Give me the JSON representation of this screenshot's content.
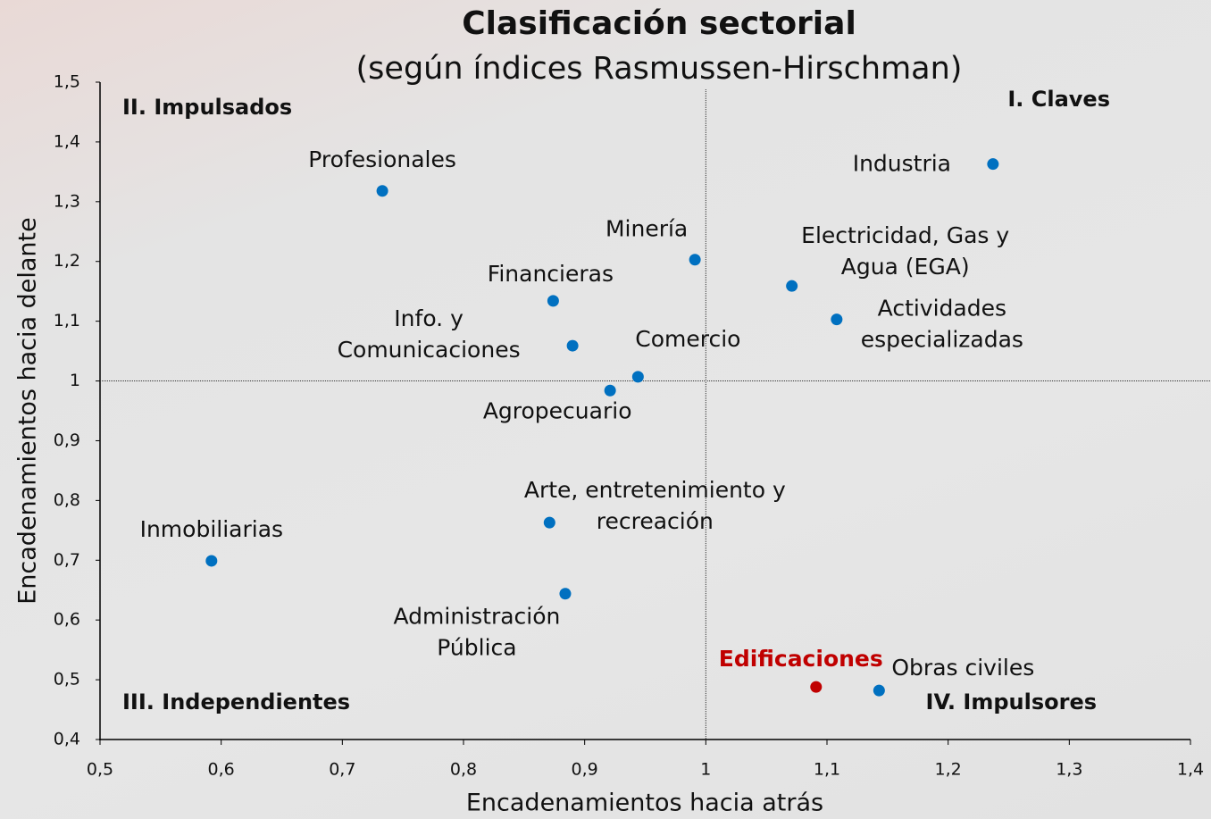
{
  "chart_data": {
    "type": "scatter",
    "title": "Clasificación sectorial",
    "subtitle": "(según índices Rasmussen-Hirschman)",
    "xlabel": "Encadenamientos hacia atrás",
    "ylabel": "Encadenamientos hacia delante",
    "xlim": [
      0.5,
      1.4
    ],
    "ylim": [
      0.4,
      1.5
    ],
    "xticks": [
      {
        "value": 0.5,
        "label": "0,5"
      },
      {
        "value": 0.6,
        "label": "0,6"
      },
      {
        "value": 0.7,
        "label": "0,7"
      },
      {
        "value": 0.8,
        "label": "0,8"
      },
      {
        "value": 0.9,
        "label": "0,9"
      },
      1,
      {
        "value": 1.1,
        "label": "1,1"
      },
      {
        "value": 1.2,
        "label": "1,2"
      },
      {
        "value": 1.3,
        "label": "1,3"
      },
      {
        "value": 1.4,
        "label": "1,4"
      }
    ],
    "yticks": [
      {
        "value": 0.4,
        "label": "0,4"
      },
      {
        "value": 0.5,
        "label": "0,5"
      },
      {
        "value": 0.6,
        "label": "0,6"
      },
      {
        "value": 0.7,
        "label": "0,7"
      },
      {
        "value": 0.8,
        "label": "0,8"
      },
      {
        "value": 0.9,
        "label": "0,9"
      },
      1,
      {
        "value": 1.1,
        "label": "1,1"
      },
      {
        "value": 1.2,
        "label": "1,2"
      },
      {
        "value": 1.3,
        "label": "1,3"
      },
      {
        "value": 1.4,
        "label": "1,4"
      },
      {
        "value": 1.5,
        "label": "1,5"
      }
    ],
    "reference_lines": {
      "x": 1,
      "y": 1
    },
    "quadrants": [
      "I. Claves",
      "II. Impulsados",
      "III. Independientes",
      "IV. Impulsores"
    ],
    "labels": [
      [
        "Profesionales"
      ],
      [
        "Industria"
      ],
      [
        "Minería"
      ],
      [
        "Financieras"
      ],
      [
        "Electricidad, Gas y",
        "Agua (EGA)"
      ],
      [
        "Actividades",
        "especializadas"
      ],
      [
        "Info. y",
        "Comunicaciones"
      ],
      [
        "Comercio"
      ],
      [
        "Agropecuario"
      ],
      [
        "Arte, entretenimiento y",
        "recreación"
      ],
      [
        "Inmobiliarias"
      ],
      [
        "Administración",
        "Pública"
      ],
      [
        "Edificaciones"
      ],
      [
        "Obras civiles"
      ]
    ],
    "x": [
      0.733,
      1.237,
      0.991,
      0.874,
      1.071,
      1.108,
      0.89,
      0.944,
      0.921,
      0.871,
      0.592,
      0.884,
      1.091,
      1.143
    ],
    "values": [
      1.318,
      1.363,
      1.203,
      1.134,
      1.159,
      1.103,
      1.059,
      1.007,
      0.984,
      0.763,
      0.699,
      0.644,
      0.488,
      0.482
    ],
    "colors": [
      "#0070c0",
      "#0070c0",
      "#0070c0",
      "#0070c0",
      "#0070c0",
      "#0070c0",
      "#0070c0",
      "#0070c0",
      "#0070c0",
      "#0070c0",
      "#0070c0",
      "#0070c0",
      "#c00000",
      "#0070c0"
    ]
  }
}
